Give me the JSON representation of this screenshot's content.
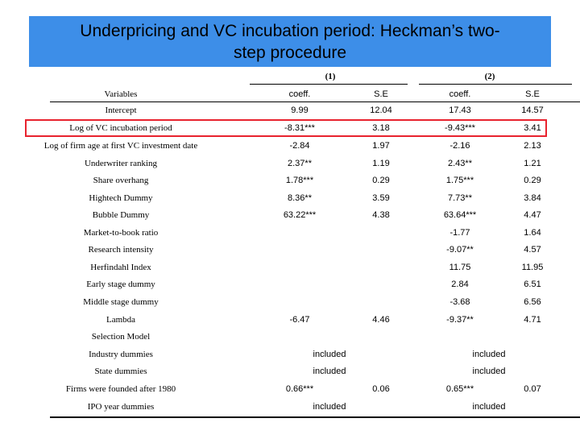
{
  "title": {
    "line1": "Underpricing and VC incubation period: Heckman’s two-",
    "line2": "step procedure"
  },
  "models": [
    "(1)",
    "(2)"
  ],
  "header": {
    "variables": "Variables",
    "c1": "coeff.",
    "c2": "S.E",
    "c3": "coeff.",
    "c4": "S.E"
  },
  "rows": [
    {
      "label": "Intercept",
      "c1": "9.99",
      "c2": "12.04",
      "c3": "17.43",
      "c4": "14.57"
    },
    {
      "label": "Log of VC incubation period",
      "c1": "-8.31***",
      "c2": "3.18",
      "c3": "-9.43***",
      "c4": "3.41"
    },
    {
      "label": "Log of firm age at first VC investment  date",
      "c1": "-2.84",
      "c2": "1.97",
      "c3": "-2.16",
      "c4": "2.13"
    },
    {
      "label": "Underwriter ranking",
      "c1": "2.37**",
      "c2": "1.19",
      "c3": "2.43**",
      "c4": "1.21"
    },
    {
      "label": "Share overhang",
      "c1": "1.78***",
      "c2": "0.29",
      "c3": "1.75***",
      "c4": "0.29"
    },
    {
      "label": "Hightech Dummy",
      "c1": "8.36**",
      "c2": "3.59",
      "c3": "7.73**",
      "c4": "3.84"
    },
    {
      "label": "Bubble Dummy",
      "c1": "63.22***",
      "c2": "4.38",
      "c3": "63.64***",
      "c4": "4.47"
    },
    {
      "label": "Market-to-book ratio",
      "c1": "",
      "c2": "",
      "c3": "-1.77",
      "c4": "1.64"
    },
    {
      "label": "Research intensity",
      "c1": "",
      "c2": "",
      "c3": "-9.07**",
      "c4": "4.57"
    },
    {
      "label": "Herfindahl Index",
      "c1": "",
      "c2": "",
      "c3": "11.75",
      "c4": "11.95"
    },
    {
      "label": "Early stage dummy",
      "c1": "",
      "c2": "",
      "c3": "2.84",
      "c4": "6.51"
    },
    {
      "label": "Middle stage dummy",
      "c1": "",
      "c2": "",
      "c3": "-3.68",
      "c4": "6.56"
    },
    {
      "label": "Lambda",
      "c1": "-6.47",
      "c2": "4.46",
      "c3": "-9.37**",
      "c4": "4.71"
    }
  ],
  "selection": {
    "heading": "Selection Model",
    "rows": [
      {
        "label": "Industry dummies",
        "m1": "included",
        "se1": "",
        "m2": "included",
        "se2": ""
      },
      {
        "label": "State dummies",
        "m1": "included",
        "se1": "",
        "m2": "included",
        "se2": ""
      },
      {
        "label": "Firms were founded after 1980",
        "m1": "0.66***",
        "se1": "0.06",
        "m2": "0.65***",
        "se2": "0.07"
      },
      {
        "label": "IPO year dummies",
        "m1": "included",
        "se1": "",
        "m2": "included",
        "se2": ""
      }
    ]
  }
}
